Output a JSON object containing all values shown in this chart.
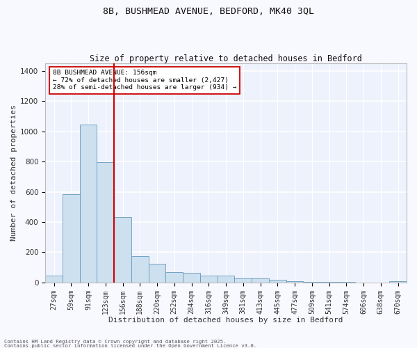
{
  "title": "8B, BUSHMEAD AVENUE, BEDFORD, MK40 3QL",
  "subtitle": "Size of property relative to detached houses in Bedford",
  "xlabel": "Distribution of detached houses by size in Bedford",
  "ylabel": "Number of detached properties",
  "categories": [
    "27sqm",
    "59sqm",
    "91sqm",
    "123sqm",
    "156sqm",
    "188sqm",
    "220sqm",
    "252sqm",
    "284sqm",
    "316sqm",
    "349sqm",
    "381sqm",
    "413sqm",
    "445sqm",
    "477sqm",
    "509sqm",
    "541sqm",
    "574sqm",
    "606sqm",
    "638sqm",
    "670sqm"
  ],
  "values": [
    45,
    585,
    1045,
    795,
    430,
    175,
    125,
    70,
    65,
    45,
    45,
    28,
    25,
    18,
    10,
    5,
    3,
    2,
    1,
    1,
    10
  ],
  "bar_color": "#cce0f0",
  "bar_edge_color": "#6699bb",
  "vline_color": "#cc0000",
  "annotation_text": "8B BUSHMEAD AVENUE: 156sqm\n← 72% of detached houses are smaller (2,427)\n28% of semi-detached houses are larger (934) →",
  "annotation_box_color": "#ffffff",
  "annotation_box_edge": "#cc0000",
  "ylim": [
    0,
    1450
  ],
  "yticks": [
    0,
    200,
    400,
    600,
    800,
    1000,
    1200,
    1400
  ],
  "fig_bg": "#f8f8ff",
  "plot_bg": "#eef2fc",
  "grid_color": "#ffffff",
  "footer_line1": "Contains HM Land Registry data © Crown copyright and database right 2025.",
  "footer_line2": "Contains public sector information licensed under the Open Government Licence v3.0."
}
